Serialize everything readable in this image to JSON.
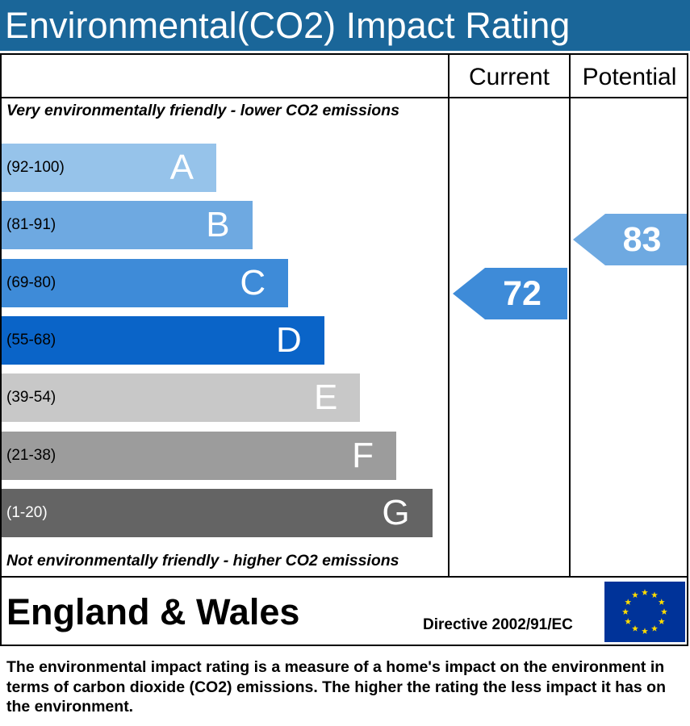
{
  "title": "Environmental(CO2) Impact Rating",
  "columns": {
    "current": "Current",
    "potential": "Potential"
  },
  "notes": {
    "top": "Very environmentally friendly - lower CO2 emissions",
    "bottom": "Not environmentally friendly - higher CO2 emissions"
  },
  "chart_data": {
    "type": "bar",
    "categories": [
      "A",
      "B",
      "C",
      "D",
      "E",
      "F",
      "G"
    ],
    "ranges": [
      "(92-100)",
      "(81-91)",
      "(69-80)",
      "(55-68)",
      "(39-54)",
      "(21-38)",
      "(1-20)"
    ],
    "band_colors": [
      "#96c3ea",
      "#6ea9e1",
      "#3e8bd8",
      "#0a64c8",
      "#c8c8c8",
      "#9c9c9c",
      "#646464"
    ],
    "range_text_colors": [
      "#000000",
      "#000000",
      "#000000",
      "#000000",
      "#000000",
      "#000000",
      "#ffffff"
    ],
    "current": {
      "value": 72,
      "color": "#3e8bd8"
    },
    "potential": {
      "value": 83,
      "color": "#6ea9e1"
    }
  },
  "footer": {
    "region": "England & Wales",
    "directive": "Directive 2002/91/EC",
    "flag_icon": "eu-flag-icon",
    "flag_color": "#003399",
    "star_color": "#ffdd00"
  },
  "caption": "The environmental impact rating is a measure of a home's impact on the environment in terms of carbon dioxide (CO2) emissions. The higher the rating the less impact it has on the environment."
}
